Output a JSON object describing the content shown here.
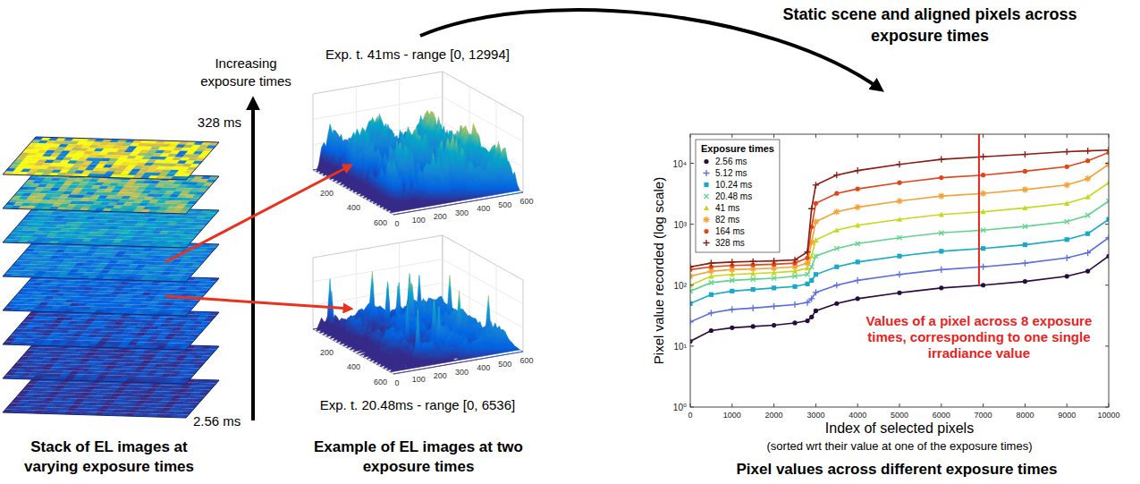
{
  "header": {
    "text": "Static scene and aligned pixels across exposure times"
  },
  "stack": {
    "arrow_label": "Increasing exposure times",
    "top_label": "328 ms",
    "bottom_label": "2.56 ms",
    "caption": "Stack of EL images at varying exposure times"
  },
  "examples": {
    "panels": [
      {
        "title": "Exp. t. 41ms - range [0, 12994]",
        "depth_ticks": [
          200,
          400,
          600
        ],
        "width_ticks": [
          0,
          100,
          200,
          300,
          400,
          500,
          600
        ]
      },
      {
        "title": "Exp. t. 20.48ms - range [0, 6536]",
        "depth_ticks": [
          200,
          400,
          600
        ],
        "width_ticks": [
          0,
          100,
          200,
          300,
          400,
          500,
          600
        ]
      }
    ],
    "caption": "Example of EL images at two exposure times"
  },
  "chart_data": {
    "type": "line",
    "ylabel": "Pixel value recorded (log scale)",
    "xlabel": "Index of selected pixels",
    "xlabel_note": "(sorted wrt their value at one of the exposure times)",
    "caption": "Pixel values across different exposure times",
    "legend_title": "Exposure times",
    "legend": "upper left",
    "log": "y",
    "grid": false,
    "xlim": [
      0,
      10000
    ],
    "ylim": [
      1,
      30000
    ],
    "xticks": [
      0,
      1000,
      2000,
      3000,
      4000,
      5000,
      6000,
      7000,
      8000,
      9000,
      10000
    ],
    "yticks": [
      {
        "value": 1,
        "label": "10⁰"
      },
      {
        "value": 10,
        "label": "10¹"
      },
      {
        "value": 100,
        "label": "10²"
      },
      {
        "value": 1000,
        "label": "10³"
      },
      {
        "value": 10000,
        "label": "10⁴"
      }
    ],
    "x": [
      0,
      500,
      1000,
      1500,
      2000,
      2500,
      2800,
      2900,
      3000,
      3500,
      4000,
      5000,
      6000,
      7000,
      8000,
      9000,
      9500,
      10000
    ],
    "series": [
      {
        "name": "2.56 ms",
        "color": "#2b0b3f",
        "marker": "circle",
        "values": [
          12,
          18,
          20,
          21,
          22,
          24,
          26,
          30,
          38,
          50,
          60,
          75,
          90,
          100,
          115,
          140,
          170,
          300
        ]
      },
      {
        "name": "5.12 ms",
        "color": "#5b6fe0",
        "marker": "plus",
        "values": [
          25,
          35,
          40,
          42,
          45,
          48,
          52,
          60,
          76,
          100,
          120,
          150,
          180,
          200,
          230,
          280,
          340,
          600
        ]
      },
      {
        "name": "10.24 ms",
        "color": "#17a9c6",
        "marker": "square",
        "values": [
          50,
          70,
          80,
          85,
          90,
          95,
          105,
          120,
          150,
          200,
          240,
          300,
          360,
          400,
          460,
          560,
          700,
          1200
        ]
      },
      {
        "name": "20.48 ms",
        "color": "#5fd48a",
        "marker": "x",
        "values": [
          80,
          110,
          120,
          125,
          130,
          140,
          150,
          200,
          300,
          400,
          480,
          600,
          720,
          800,
          920,
          1100,
          1400,
          2400
        ]
      },
      {
        "name": "41 ms",
        "color": "#c6d81c",
        "marker": "triangle",
        "values": [
          100,
          140,
          150,
          155,
          160,
          170,
          190,
          300,
          550,
          800,
          960,
          1200,
          1440,
          1600,
          1850,
          2200,
          2800,
          4800
        ]
      },
      {
        "name": "82 ms",
        "color": "#f5a236",
        "marker": "star",
        "values": [
          140,
          170,
          180,
          185,
          190,
          200,
          230,
          500,
          1100,
          1600,
          1900,
          2400,
          2900,
          3200,
          3700,
          4400,
          5600,
          9600
        ]
      },
      {
        "name": "164 ms",
        "color": "#e2451a",
        "marker": "circle",
        "values": [
          180,
          200,
          210,
          215,
          220,
          230,
          280,
          900,
          2200,
          3200,
          3800,
          4800,
          5800,
          6400,
          7400,
          8800,
          11000,
          15000
        ]
      },
      {
        "name": "328 ms",
        "color": "#8b1a10",
        "marker": "plus",
        "values": [
          200,
          230,
          240,
          245,
          250,
          260,
          350,
          1800,
          4400,
          6400,
          7600,
          9600,
          11600,
          12800,
          14000,
          15500,
          16000,
          16500
        ]
      }
    ],
    "annotation": {
      "text": "Values of a pixel across 8 exposure times, corresponding to one single irradiance value",
      "x": 6900,
      "y": [
        100,
        30000
      ]
    }
  }
}
